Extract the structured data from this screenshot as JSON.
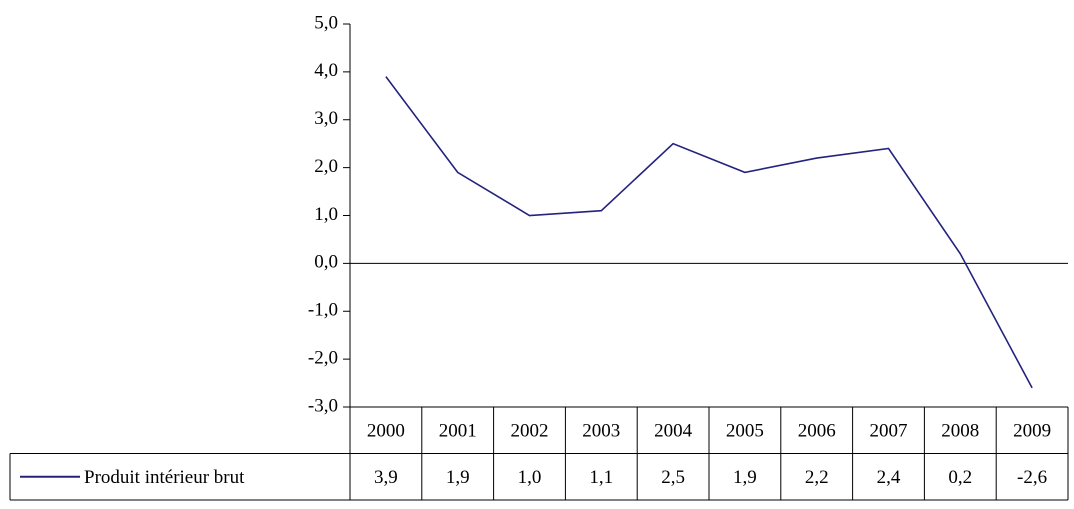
{
  "chart_data": {
    "type": "line",
    "categories": [
      "2000",
      "2001",
      "2002",
      "2003",
      "2004",
      "2005",
      "2006",
      "2007",
      "2008",
      "2009"
    ],
    "series": [
      {
        "name": "Produit intérieur brut",
        "color": "#23237f",
        "values": [
          3.9,
          1.9,
          1.0,
          1.1,
          2.5,
          1.9,
          2.2,
          2.4,
          0.2,
          -2.6
        ],
        "value_labels": [
          "3,9",
          "1,9",
          "1,0",
          "1,1",
          "2,5",
          "1,9",
          "2,2",
          "2,4",
          "0,2",
          "-2,6"
        ]
      }
    ],
    "ylim": [
      -3,
      5
    ],
    "yticks": [
      {
        "value": 5,
        "label": "5,0"
      },
      {
        "value": 4,
        "label": "4,0"
      },
      {
        "value": 3,
        "label": "3,0"
      },
      {
        "value": 2,
        "label": "2,0"
      },
      {
        "value": 1,
        "label": "1,0"
      },
      {
        "value": 0,
        "label": "0,0"
      },
      {
        "value": -1,
        "label": "-1,0"
      },
      {
        "value": -2,
        "label": "-2,0"
      },
      {
        "value": -3,
        "label": "-3,0"
      }
    ],
    "grid": false
  }
}
